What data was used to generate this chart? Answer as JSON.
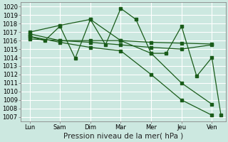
{
  "x_labels": [
    "Lun",
    "Sam",
    "Dim",
    "Mar",
    "Mer",
    "Jeu",
    "Ven"
  ],
  "x_positions": [
    0,
    1,
    2,
    3,
    4,
    5,
    6
  ],
  "xlabel": "Pression niveau de la mer( hPa )",
  "ylim": [
    1006.5,
    1020.5
  ],
  "yticks": [
    1007,
    1008,
    1009,
    1010,
    1011,
    1012,
    1013,
    1014,
    1015,
    1016,
    1017,
    1018,
    1019,
    1020
  ],
  "background_color": "#cce8e0",
  "grid_color": "#ffffff",
  "line_color": "#1a5c1a",
  "tick_fontsize": 6,
  "label_fontsize": 7.5,
  "line1": {
    "x": [
      0,
      1,
      2,
      3,
      4,
      5,
      6
    ],
    "y": [
      1016.8,
      1016.0,
      1016.0,
      1016.0,
      1015.8,
      1015.7,
      1015.6
    ]
  },
  "line2": {
    "x": [
      0,
      1,
      2,
      3,
      4,
      5,
      6
    ],
    "y": [
      1016.2,
      1016.0,
      1015.8,
      1015.5,
      1015.2,
      1015.0,
      1015.5
    ]
  },
  "line3": {
    "x": [
      0,
      0.5,
      1.0,
      1.5,
      2.0,
      2.5,
      3.0,
      3.5,
      4.0,
      4.5,
      5.0,
      5.5,
      6.0,
      6.3
    ],
    "y": [
      1016.5,
      1016.0,
      1017.7,
      1013.9,
      1018.5,
      1015.5,
      1019.8,
      1018.5,
      1014.5,
      1014.5,
      1017.7,
      1011.8,
      1014.0,
      1007.2
    ]
  },
  "line4": {
    "x": [
      0,
      1,
      2,
      3,
      4,
      5,
      6
    ],
    "y": [
      1017.0,
      1017.8,
      1018.5,
      1016.0,
      1014.5,
      1011.0,
      1008.5
    ]
  },
  "line5": {
    "x": [
      0,
      1,
      2,
      3,
      4,
      5,
      6
    ],
    "y": [
      1016.5,
      1015.8,
      1015.2,
      1014.8,
      1012.0,
      1009.0,
      1007.2
    ]
  }
}
